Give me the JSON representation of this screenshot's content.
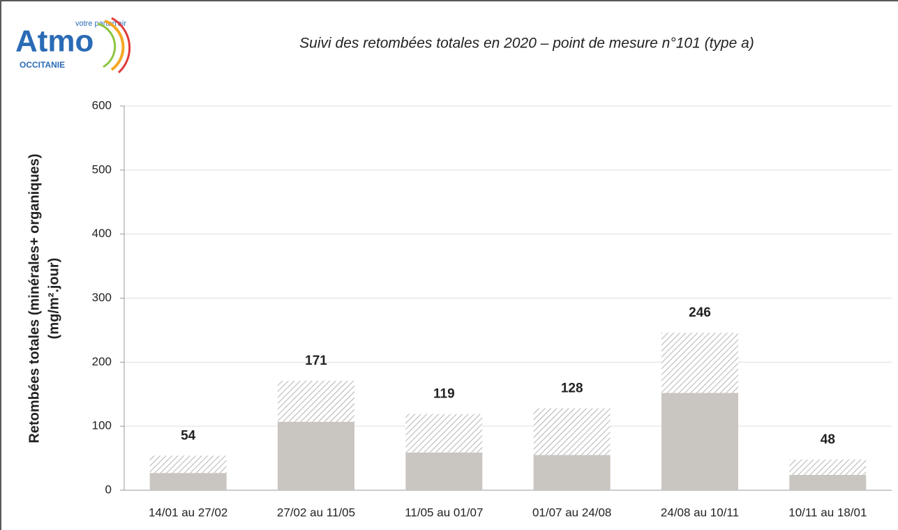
{
  "logo": {
    "name": "Atmo",
    "tagline": "votre parten'air",
    "region": "OCCITANIE"
  },
  "chart_data": {
    "type": "stacked_bar",
    "title": "Suivi des retombées totales en 2020 – point de mesure n°101 (type a)",
    "ylabel": [
      "Retombées totales (minérales+ organiques)",
      "(mg/m².jour)"
    ],
    "categories": [
      "14/01 au 27/02",
      "27/02 au 11/05",
      "11/05 au 01/07",
      "01/07 au 24/08",
      "24/08 au 10/11",
      "10/11 au 18/01"
    ],
    "series": [
      {
        "color": "#c9c6c1",
        "values": [
          27,
          107,
          59,
          55,
          152,
          24
        ]
      },
      {
        "color": "#9a9a9a",
        "pattern": "hatch",
        "values": [
          27,
          64,
          60,
          73,
          94,
          24
        ]
      }
    ],
    "totals": [
      54,
      171,
      119,
      128,
      246,
      48
    ],
    "ylim": [
      0,
      600
    ],
    "yticks": [
      0,
      100,
      200,
      300,
      400,
      500,
      600
    ],
    "grid": true
  }
}
